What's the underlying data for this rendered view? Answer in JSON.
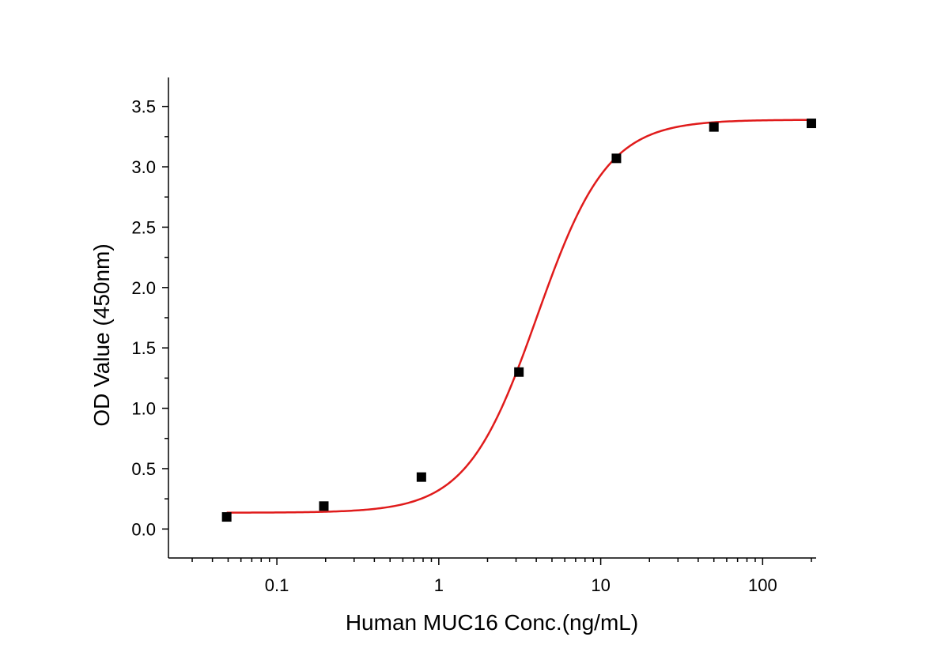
{
  "chart_data": {
    "type": "scatter",
    "title": "",
    "xlabel": "Human MUC16 Conc.(ng/mL)",
    "ylabel": "OD Value (450nm)",
    "x_scale": "log",
    "xlim": [
      0.0214,
      214
    ],
    "ylim": [
      -0.24,
      3.74
    ],
    "x_ticks": [
      0.1,
      1,
      10,
      100
    ],
    "x_tick_labels": [
      "0.1",
      "1",
      "10",
      "100"
    ],
    "y_ticks": [
      0.0,
      0.5,
      1.0,
      1.5,
      2.0,
      2.5,
      3.0,
      3.5
    ],
    "y_tick_labels": [
      "0.0",
      "0.5",
      "1.0",
      "1.5",
      "2.0",
      "2.5",
      "3.0",
      "3.5"
    ],
    "grid": false,
    "legend": "none",
    "series": [
      {
        "type": "scatter",
        "marker": "square",
        "color": "#000000",
        "x": [
          0.049,
          0.195,
          0.781,
          3.125,
          12.5,
          50,
          200
        ],
        "y": [
          0.1,
          0.19,
          0.43,
          1.3,
          3.07,
          3.33,
          3.36
        ]
      },
      {
        "type": "line",
        "fit": "4PL",
        "color": "#e01b1b",
        "bottom": 0.135,
        "top": 3.39,
        "ec50": 4.05,
        "hill": 2.0,
        "x_range": [
          0.049,
          200
        ]
      }
    ]
  }
}
